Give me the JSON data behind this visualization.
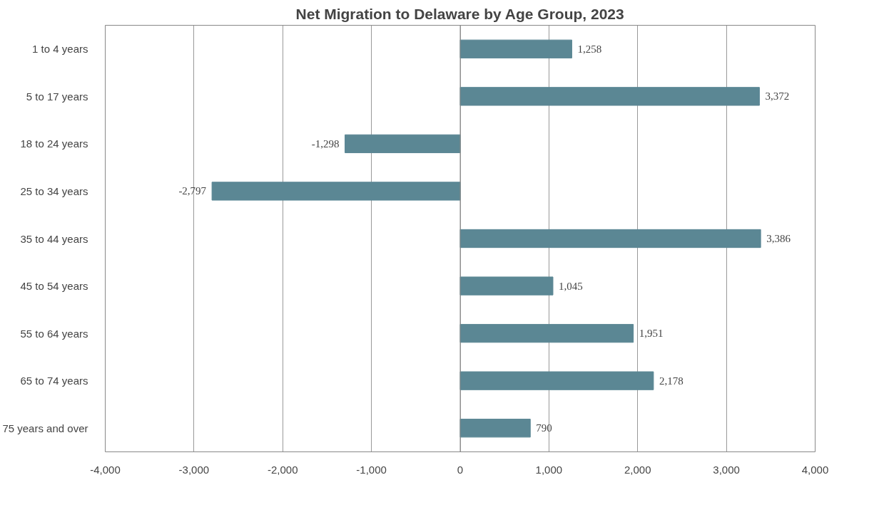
{
  "chart_data": {
    "type": "bar",
    "orientation": "horizontal",
    "title": "Net Migration to Delaware by Age Group, 2023",
    "categories": [
      "1 to 4 years",
      "5 to 17 years",
      "18 to 24 years",
      "25 to 34 years",
      "35 to 44 years",
      "45 to 54 years",
      "55 to 64 years",
      "65 to 74 years",
      "75 years and over"
    ],
    "values": [
      1258,
      3372,
      -1298,
      -2797,
      3386,
      1045,
      1951,
      2178,
      790
    ],
    "value_labels": [
      "1,258",
      "3,372",
      "-1,298",
      "-2,797",
      "3,386",
      "1,045",
      "1,951",
      "2,178",
      "790"
    ],
    "color": "#5b8794",
    "xlim": [
      -4000,
      4000
    ],
    "xticks": [
      {
        "value": -4000,
        "label": "-4,000"
      },
      {
        "value": -3000,
        "label": "-3,000"
      },
      {
        "value": -2000,
        "label": "-2,000"
      },
      {
        "value": -1000,
        "label": "-1,000"
      },
      0,
      {
        "value": 1000,
        "label": "1,000"
      },
      {
        "value": 2000,
        "label": "2,000"
      },
      {
        "value": 3000,
        "label": "3,000"
      },
      {
        "value": 4000,
        "label": "4,000"
      }
    ],
    "grid": "x"
  }
}
